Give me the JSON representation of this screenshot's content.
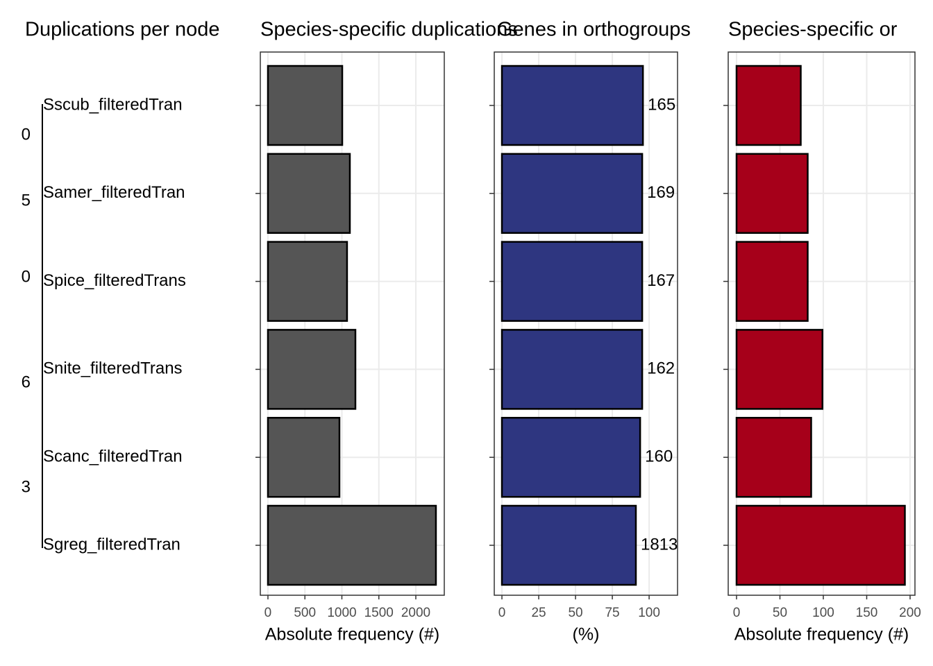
{
  "chart_data": [
    {
      "type": "tree",
      "title": "Duplications per node",
      "tips": [
        "Sscub_filteredTran",
        "Samer_filteredTran",
        "Spice_filteredTrans",
        "Snite_filteredTrans",
        "Scanc_filteredTran",
        "Sgreg_filteredTran"
      ],
      "node_labels": [
        "0",
        "5",
        "0",
        "6",
        "3"
      ]
    },
    {
      "type": "bar",
      "title": "Species-specific duplications",
      "xlabel": "Absolute frequency (#)",
      "values": [
        1005,
        1108,
        1070,
        1183,
        967,
        2272
      ],
      "color": "#555555",
      "xlim": [
        -103,
        2385
      ],
      "xticks": [
        0,
        500,
        1000,
        1500,
        2000
      ],
      "grid": true
    },
    {
      "type": "bar",
      "title": "Genes in orthogroups",
      "xlabel": "(%)",
      "values": [
        95.8,
        95.3,
        95.3,
        95.3,
        93.9,
        91.0
      ],
      "color": "#2e3680",
      "annotations": [
        "165",
        "169",
        "167",
        "162",
        "160",
        "1813"
      ],
      "xlim": [
        -5.2,
        119.3
      ],
      "xticks": [
        0,
        25,
        50,
        75,
        100
      ],
      "grid": true
    },
    {
      "type": "bar",
      "title": "Species-specific or",
      "xlabel": "Absolute frequency (#)",
      "values": [
        74,
        82,
        82,
        99,
        86,
        194
      ],
      "color": "#a6001a",
      "xlim": [
        -9.6,
        205.6
      ],
      "xticks": [
        0,
        50,
        100,
        150,
        200
      ],
      "grid": true
    }
  ]
}
